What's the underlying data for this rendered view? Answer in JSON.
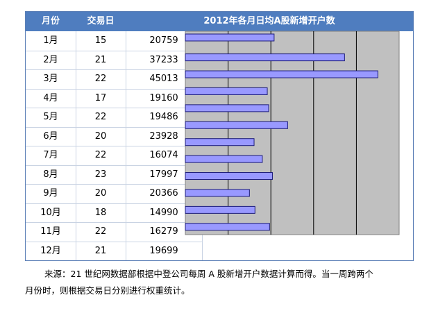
{
  "table": {
    "headers": [
      "月份",
      "交易日",
      "2012年各月日均A股新增开户数"
    ],
    "rows": [
      [
        "1月",
        "15",
        "20759"
      ],
      [
        "2月",
        "21",
        "37233"
      ],
      [
        "3月",
        "22",
        "45013"
      ],
      [
        "4月",
        "17",
        "19160"
      ],
      [
        "5月",
        "22",
        "19486"
      ],
      [
        "6月",
        "20",
        "23928"
      ],
      [
        "7月",
        "22",
        "16074"
      ],
      [
        "8月",
        "23",
        "17997"
      ],
      [
        "9月",
        "20",
        "20366"
      ],
      [
        "10月",
        "18",
        "14990"
      ],
      [
        "11月",
        "22",
        "16279"
      ],
      [
        "12月",
        "21",
        "19699"
      ]
    ]
  },
  "chart_data": {
    "type": "bar",
    "orientation": "horizontal",
    "categories": [
      "1月",
      "2月",
      "3月",
      "4月",
      "5月",
      "6月",
      "7月",
      "8月",
      "9月",
      "10月",
      "11月",
      "12月"
    ],
    "values": [
      20759,
      37233,
      45013,
      19160,
      19486,
      23928,
      16074,
      17997,
      20366,
      14990,
      16279,
      19699
    ],
    "xlim": [
      0,
      50000
    ],
    "grid": true,
    "colors": {
      "bar": "#9999ff",
      "plot_bg": "#c0c0c0",
      "gridline": "#000000"
    }
  },
  "source": {
    "line1": "来源：21 世纪网数据部根据中登公司每周 A 股新增开户数据计算而得。当一周跨两个",
    "line2": "月份时，则根据交易日分别进行权重统计。"
  },
  "colors": {
    "header_bg": "#4f7dbf",
    "header_text": "#ffffff",
    "border": "#5b7fb6"
  }
}
